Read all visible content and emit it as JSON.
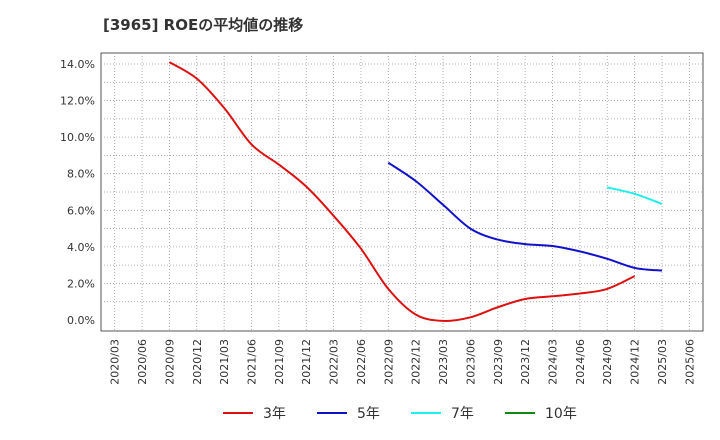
{
  "chart_data": {
    "type": "line",
    "title": "[3965]  ROEの平均値の推移",
    "xlabel": "",
    "ylabel": "",
    "ylim": [
      -0.6,
      14.6
    ],
    "yticks": [
      "0.0%",
      "2.0%",
      "4.0%",
      "6.0%",
      "8.0%",
      "10.0%",
      "12.0%",
      "14.0%"
    ],
    "ytick_values": [
      0,
      2,
      4,
      6,
      8,
      10,
      12,
      14
    ],
    "xticks": [
      "2020/03",
      "2020/06",
      "2020/09",
      "2020/12",
      "2021/03",
      "2021/06",
      "2021/09",
      "2021/12",
      "2022/03",
      "2022/06",
      "2022/09",
      "2022/12",
      "2023/03",
      "2023/06",
      "2023/09",
      "2023/12",
      "2024/03",
      "2024/06",
      "2024/09",
      "2024/12",
      "2025/03",
      "2025/06"
    ],
    "grid": true,
    "legend_position": "bottom",
    "series": [
      {
        "name": "3年",
        "color": "#dd1111",
        "start_index": 2,
        "values": [
          14.1,
          13.2,
          11.6,
          9.6,
          8.5,
          7.3,
          5.7,
          3.9,
          1.7,
          0.3,
          -0.05,
          0.15,
          0.7,
          1.15,
          1.3,
          1.45,
          1.7,
          2.4
        ]
      },
      {
        "name": "5年",
        "color": "#1111cc",
        "start_index": 10,
        "values": [
          8.6,
          7.6,
          6.3,
          5.0,
          4.4,
          4.15,
          4.05,
          3.75,
          3.35,
          2.85,
          2.7
        ]
      },
      {
        "name": "7年",
        "color": "#22eeee",
        "start_index": 18,
        "values": [
          7.25,
          6.9,
          6.35
        ]
      },
      {
        "name": "10年",
        "color": "#118811",
        "start_index": 0,
        "values": []
      }
    ]
  }
}
